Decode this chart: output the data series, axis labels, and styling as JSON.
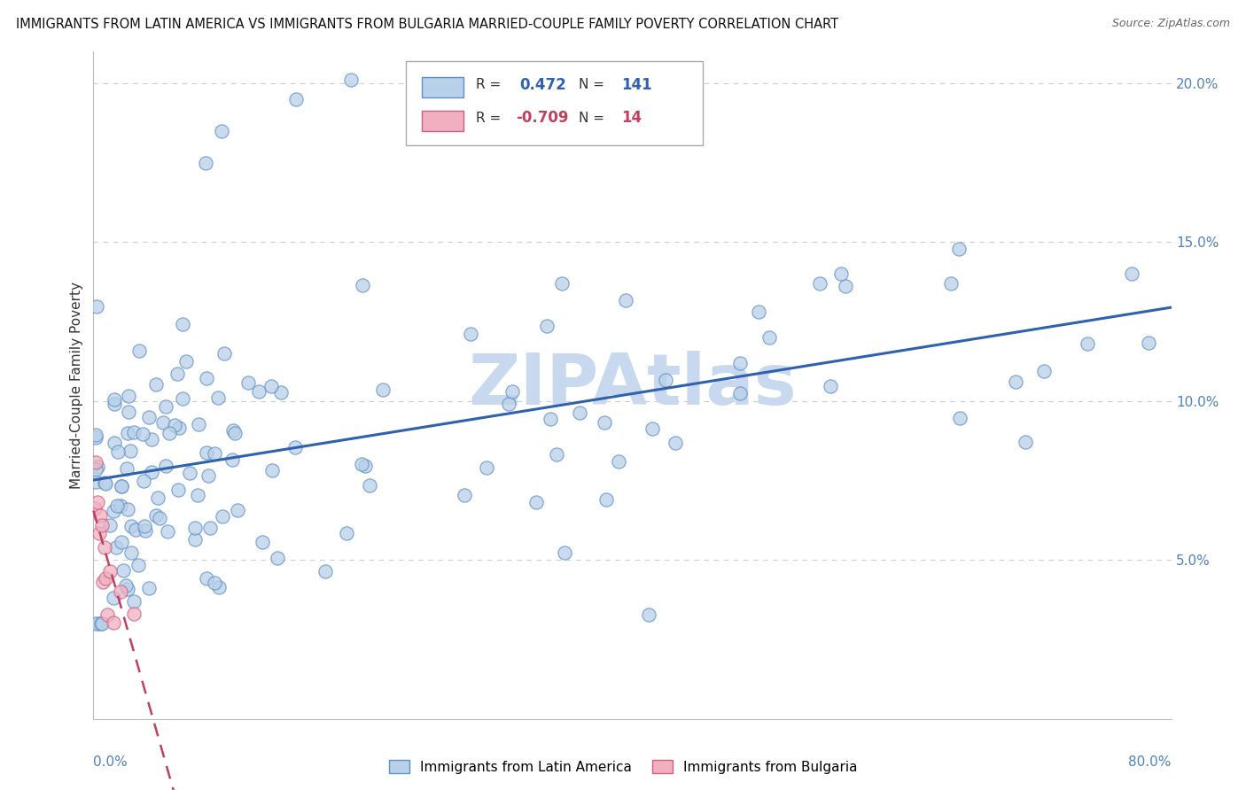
{
  "title": "IMMIGRANTS FROM LATIN AMERICA VS IMMIGRANTS FROM BULGARIA MARRIED-COUPLE FAMILY POVERTY CORRELATION CHART",
  "source": "Source: ZipAtlas.com",
  "ylabel": "Married-Couple Family Poverty",
  "series": [
    {
      "name": "Immigrants from Latin America",
      "R": 0.472,
      "N": 141,
      "color": "#b8d0e8",
      "edge_color": "#6090c8",
      "line_color": "#3060b0"
    },
    {
      "name": "Immigrants from Bulgaria",
      "R": -0.709,
      "N": 14,
      "color": "#f0b0c0",
      "edge_color": "#d06080",
      "line_color": "#c04060"
    }
  ],
  "xlim": [
    0.0,
    0.8
  ],
  "ylim": [
    0.0,
    0.21
  ],
  "yticks": [
    0.0,
    0.05,
    0.1,
    0.15,
    0.2
  ],
  "ytick_labels": [
    "",
    "5.0%",
    "10.0%",
    "15.0%",
    "20.0%"
  ],
  "watermark": "ZIPAtlas",
  "watermark_color": "#c8d8ee",
  "background_color": "#ffffff",
  "grid_color": "#cccccc"
}
